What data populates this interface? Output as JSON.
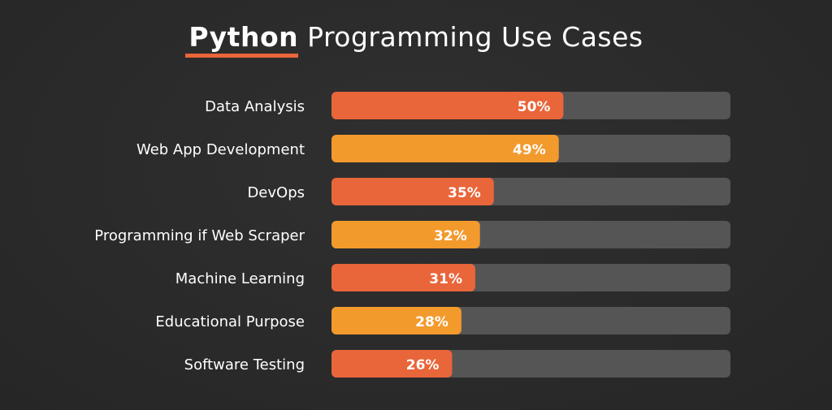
{
  "title": {
    "highlight": "Python",
    "rest": "Programming Use Cases"
  },
  "chart_data": {
    "type": "bar",
    "orientation": "horizontal",
    "categories": [
      "Data Analysis",
      "Web App Development",
      "DevOps",
      "Programming if Web Scraper",
      "Machine Learning",
      "Educational Purpose",
      "Software Testing"
    ],
    "values": [
      50,
      49,
      35,
      32,
      31,
      28,
      26
    ],
    "labels": [
      "50%",
      "49%",
      "35%",
      "32%",
      "31%",
      "28%",
      "26%"
    ],
    "unit": "%",
    "grid": false,
    "colors": [
      "#e9653a",
      "#f39a2d",
      "#e9653a",
      "#f39a2d",
      "#e9653a",
      "#f39a2d",
      "#e9653a"
    ],
    "track_color": "#555555"
  }
}
